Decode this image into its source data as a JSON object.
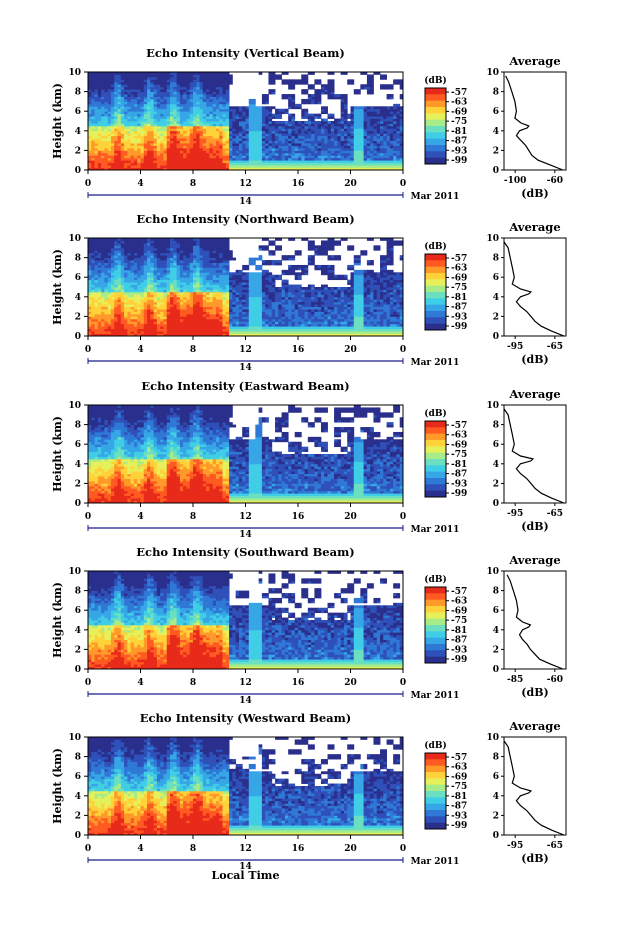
{
  "figure": {
    "xlabel": "Local Time",
    "date_label": "Mar 2011",
    "day_label": "14",
    "avg_title": "Average",
    "unit_label": "(dB)",
    "ylabel": "Height (km)"
  },
  "colors": {
    "scale": [
      "#2a2f8c",
      "#2e50b8",
      "#2f78d6",
      "#36a6e6",
      "#40cde6",
      "#6be0c0",
      "#a8ec88",
      "#e6f05a",
      "#ffd23a",
      "#ff9a2a",
      "#ff5a22",
      "#e82a1a"
    ],
    "missing": "#ffffff"
  },
  "chart_data": [
    {
      "type": "heatmap",
      "title": "Echo Intensity (Vertical Beam)",
      "xlabel": "Local Time",
      "ylabel": "Height (km)",
      "xlim": [
        0,
        24
      ],
      "ylim": [
        0,
        10
      ],
      "xticks": [
        "0",
        "4",
        "8",
        "12",
        "16",
        "20",
        "0"
      ],
      "yticks": [
        "0",
        "2",
        "4",
        "6",
        "8",
        "10"
      ],
      "colorbar": {
        "label": "(dB)",
        "ticks": [
          "-57",
          "-63",
          "-69",
          "-75",
          "-81",
          "-87",
          "-93",
          "-99"
        ],
        "range": [
          -99,
          -57
        ]
      },
      "average": {
        "title": "Average",
        "xlabel": "(dB)",
        "xticks": [
          "-100",
          "-60"
        ],
        "xlim": [
          -100,
          -60
        ],
        "ylim": [
          0,
          10
        ],
        "profile": [
          [
            0.0,
            -62
          ],
          [
            0.5,
            -70
          ],
          [
            1.0,
            -78
          ],
          [
            1.5,
            -82
          ],
          [
            2.0,
            -84
          ],
          [
            2.5,
            -86
          ],
          [
            3.0,
            -89
          ],
          [
            3.5,
            -92
          ],
          [
            4.0,
            -90
          ],
          [
            4.3,
            -85
          ],
          [
            4.5,
            -84
          ],
          [
            4.8,
            -89
          ],
          [
            5.3,
            -93
          ],
          [
            6.0,
            -92
          ],
          [
            7.0,
            -93
          ],
          [
            8.0,
            -95
          ],
          [
            9.0,
            -97
          ],
          [
            9.6,
            -99
          ]
        ]
      }
    },
    {
      "type": "heatmap",
      "title": "Echo Intensity (Northward Beam)",
      "xlabel": "Local Time",
      "ylabel": "Height (km)",
      "xlim": [
        0,
        24
      ],
      "ylim": [
        0,
        10
      ],
      "xticks": [
        "0",
        "4",
        "8",
        "12",
        "16",
        "20",
        "0"
      ],
      "yticks": [
        "0",
        "2",
        "4",
        "6",
        "8",
        "10"
      ],
      "colorbar": {
        "label": "(dB)",
        "ticks": [
          "-57",
          "-63",
          "-69",
          "-75",
          "-81",
          "-87",
          "-93",
          "-99"
        ],
        "range": [
          -99,
          -57
        ]
      },
      "average": {
        "title": "Average",
        "xlabel": "(dB)",
        "xticks": [
          "-95",
          "-65"
        ],
        "xlim": [
          -95,
          -65
        ],
        "ylim": [
          0,
          10
        ],
        "profile": [
          [
            0.0,
            -66
          ],
          [
            0.5,
            -72
          ],
          [
            1.0,
            -77
          ],
          [
            1.5,
            -80
          ],
          [
            2.0,
            -82
          ],
          [
            2.5,
            -84
          ],
          [
            3.0,
            -87
          ],
          [
            3.5,
            -89
          ],
          [
            4.0,
            -87
          ],
          [
            4.3,
            -83
          ],
          [
            4.5,
            -82
          ],
          [
            4.8,
            -87
          ],
          [
            5.3,
            -91
          ],
          [
            6.0,
            -90
          ],
          [
            7.0,
            -91
          ],
          [
            8.0,
            -92
          ],
          [
            9.0,
            -93
          ],
          [
            9.6,
            -95
          ]
        ]
      }
    },
    {
      "type": "heatmap",
      "title": "Echo Intensity (Eastward Beam)",
      "xlabel": "Local Time",
      "ylabel": "Height (km)",
      "xlim": [
        0,
        24
      ],
      "ylim": [
        0,
        10
      ],
      "xticks": [
        "0",
        "4",
        "8",
        "12",
        "16",
        "20",
        "0"
      ],
      "yticks": [
        "0",
        "2",
        "4",
        "6",
        "8",
        "10"
      ],
      "colorbar": {
        "label": "(dB)",
        "ticks": [
          "-57",
          "-63",
          "-69",
          "-75",
          "-81",
          "-87",
          "-93",
          "-99"
        ],
        "range": [
          -99,
          -57
        ]
      },
      "average": {
        "title": "Average",
        "xlabel": "(dB)",
        "xticks": [
          "-95",
          "-65"
        ],
        "xlim": [
          -95,
          -65
        ],
        "ylim": [
          0,
          10
        ],
        "profile": [
          [
            0.0,
            -66
          ],
          [
            0.5,
            -72
          ],
          [
            1.0,
            -77
          ],
          [
            1.5,
            -80
          ],
          [
            2.0,
            -82
          ],
          [
            2.5,
            -84
          ],
          [
            3.0,
            -87
          ],
          [
            3.5,
            -89
          ],
          [
            4.0,
            -87
          ],
          [
            4.3,
            -82
          ],
          [
            4.5,
            -81
          ],
          [
            4.8,
            -87
          ],
          [
            5.3,
            -91
          ],
          [
            6.0,
            -90
          ],
          [
            7.0,
            -91
          ],
          [
            8.0,
            -92
          ],
          [
            9.0,
            -93
          ],
          [
            9.6,
            -95
          ]
        ]
      }
    },
    {
      "type": "heatmap",
      "title": "Echo Intensity (Southward Beam)",
      "xlabel": "Local Time",
      "ylabel": "Height (km)",
      "xlim": [
        0,
        24
      ],
      "ylim": [
        0,
        10
      ],
      "xticks": [
        "0",
        "4",
        "8",
        "12",
        "16",
        "20",
        "0"
      ],
      "yticks": [
        "0",
        "2",
        "4",
        "6",
        "8",
        "10"
      ],
      "colorbar": {
        "label": "(dB)",
        "ticks": [
          "-57",
          "-63",
          "-69",
          "-75",
          "-81",
          "-87",
          "-93",
          "-99"
        ],
        "range": [
          -99,
          -57
        ]
      },
      "average": {
        "title": "Average",
        "xlabel": "(dB)",
        "xticks": [
          "-85",
          "-60"
        ],
        "xlim": [
          -100,
          -60
        ],
        "ylim": [
          0,
          10
        ],
        "profile": [
          [
            0.0,
            -62
          ],
          [
            0.5,
            -70
          ],
          [
            1.0,
            -77
          ],
          [
            1.5,
            -80
          ],
          [
            2.0,
            -83
          ],
          [
            2.5,
            -85
          ],
          [
            3.0,
            -88
          ],
          [
            3.5,
            -90
          ],
          [
            4.0,
            -88
          ],
          [
            4.3,
            -84
          ],
          [
            4.5,
            -83
          ],
          [
            4.8,
            -88
          ],
          [
            5.3,
            -92
          ],
          [
            6.0,
            -91
          ],
          [
            7.0,
            -92
          ],
          [
            8.0,
            -94
          ],
          [
            9.0,
            -96
          ],
          [
            9.6,
            -98
          ]
        ]
      }
    },
    {
      "type": "heatmap",
      "title": "Echo Intensity (Westward Beam)",
      "xlabel": "Local Time",
      "ylabel": "Height (km)",
      "xlim": [
        0,
        24
      ],
      "ylim": [
        0,
        10
      ],
      "xticks": [
        "0",
        "4",
        "8",
        "12",
        "16",
        "20",
        "0"
      ],
      "yticks": [
        "0",
        "2",
        "4",
        "6",
        "8",
        "10"
      ],
      "colorbar": {
        "label": "(dB)",
        "ticks": [
          "-57",
          "-63",
          "-69",
          "-75",
          "-81",
          "-87",
          "-93",
          "-99"
        ],
        "range": [
          -99,
          -57
        ]
      },
      "average": {
        "title": "Average",
        "xlabel": "(dB)",
        "xticks": [
          "-95",
          "-65"
        ],
        "xlim": [
          -95,
          -65
        ],
        "ylim": [
          0,
          10
        ],
        "profile": [
          [
            0.0,
            -66
          ],
          [
            0.5,
            -72
          ],
          [
            1.0,
            -77
          ],
          [
            1.5,
            -80
          ],
          [
            2.0,
            -82
          ],
          [
            2.5,
            -84
          ],
          [
            3.0,
            -87
          ],
          [
            3.5,
            -89
          ],
          [
            4.0,
            -87
          ],
          [
            4.3,
            -83
          ],
          [
            4.5,
            -82
          ],
          [
            4.8,
            -87
          ],
          [
            5.3,
            -91
          ],
          [
            6.0,
            -90
          ],
          [
            7.0,
            -91
          ],
          [
            8.0,
            -92
          ],
          [
            9.0,
            -93
          ],
          [
            9.6,
            -95
          ]
        ]
      }
    }
  ]
}
